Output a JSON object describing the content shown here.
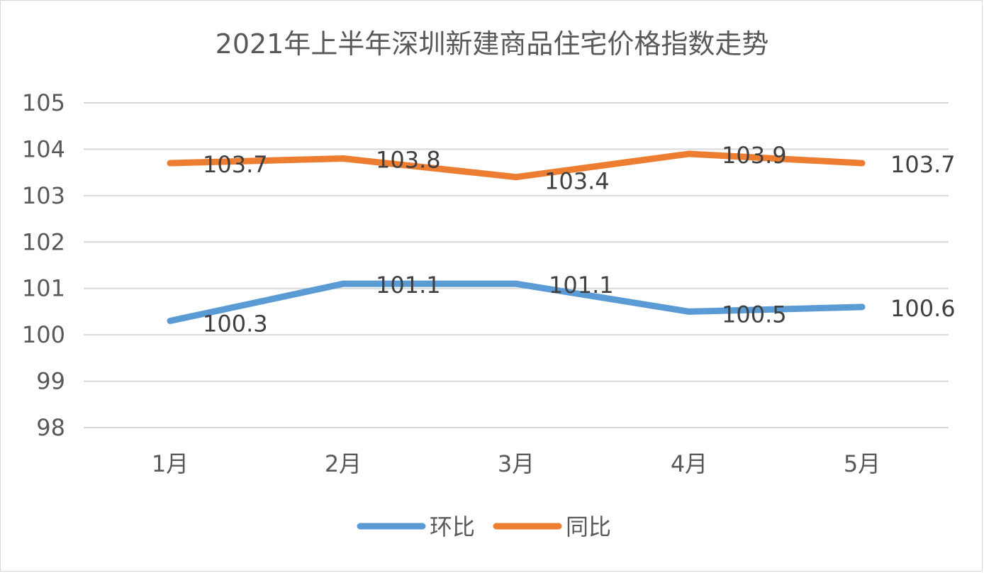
{
  "chart_data": {
    "type": "line",
    "title": "2021年上半年深圳新建商品住宅价格指数走势",
    "categories": [
      "1月",
      "2月",
      "3月",
      "4月",
      "5月"
    ],
    "series": [
      {
        "name": "环比",
        "color": "#5B9BD5",
        "values": [
          100.3,
          101.1,
          101.1,
          100.5,
          100.6
        ]
      },
      {
        "name": "同比",
        "color": "#ED7D31",
        "values": [
          103.7,
          103.8,
          103.4,
          103.9,
          103.7
        ]
      }
    ],
    "ylim": [
      98,
      105
    ],
    "yticks": [
      "98",
      "99",
      "100",
      "101",
      "102",
      "103",
      "104",
      "105"
    ],
    "data_labels": [
      [
        "100.3",
        "101.1",
        "101.1",
        "100.5",
        "100.6"
      ],
      [
        "103.7",
        "103.8",
        "103.4",
        "103.9",
        "103.7"
      ]
    ],
    "grid": true,
    "legend_position": "bottom",
    "gridline_color": "#d9d9d9"
  }
}
